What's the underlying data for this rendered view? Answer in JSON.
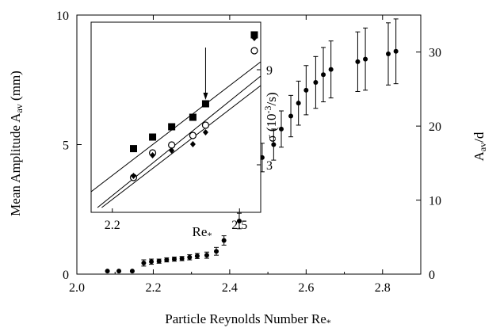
{
  "chart_data": [
    {
      "type": "scatter",
      "xlabel": "Particle Reynolds Number Re",
      "xlabel_sub": "*",
      "ylabel_left": "Mean Amplitude A",
      "ylabel_left_sub": "av",
      "ylabel_left_unit": " (mm)",
      "ylabel_right": "A",
      "ylabel_right_sub": "av",
      "ylabel_right_tail": "/d",
      "xlim": [
        2.0,
        2.9
      ],
      "ylim": [
        0,
        10
      ],
      "y2lim": [
        0,
        35
      ],
      "xticks": [
        "2.0",
        "2.2",
        "2.4",
        "2.6",
        "2.8"
      ],
      "yticks": [
        "0",
        "5",
        "10"
      ],
      "y2ticks": [
        "0",
        "10",
        "20",
        "30"
      ],
      "grid": false,
      "series": [
        {
          "marker": "filled-circle",
          "x": [
            2.08,
            2.11,
            2.145,
            2.175,
            2.195,
            2.215,
            2.235,
            2.255,
            2.275,
            2.295,
            2.315,
            2.34,
            2.365,
            2.385,
            2.425,
            2.46,
            2.485,
            2.515,
            2.535,
            2.56,
            2.58,
            2.6,
            2.625,
            2.645,
            2.665,
            2.735,
            2.755,
            2.815,
            2.835
          ],
          "y": [
            0.12,
            0.12,
            0.12,
            0.43,
            0.48,
            0.5,
            0.55,
            0.58,
            0.6,
            0.65,
            0.7,
            0.73,
            0.88,
            1.3,
            2.05,
            2.9,
            4.5,
            5.0,
            5.6,
            6.1,
            6.6,
            7.1,
            7.4,
            7.7,
            7.9,
            8.2,
            8.3,
            8.5,
            8.6
          ],
          "err": [
            0,
            0,
            0,
            0.12,
            0.1,
            0.08,
            0.08,
            0.08,
            0.08,
            0.1,
            0.1,
            0.12,
            0.15,
            0.18,
            0.3,
            0.45,
            0.55,
            0.6,
            0.7,
            0.8,
            0.85,
            0.95,
            1.0,
            1.05,
            1.1,
            1.15,
            1.2,
            1.2,
            1.25
          ]
        }
      ]
    },
    {
      "type": "scatter",
      "role": "inset",
      "xlabel": "Re",
      "xlabel_sub": "*",
      "ylabel": "σ (10",
      "ylabel_sup": "-3",
      "ylabel_tail": "/s)",
      "xlim": [
        2.15,
        2.55
      ],
      "ylim": [
        0,
        12
      ],
      "xticks": [
        "2.2",
        "2.5"
      ],
      "yticks": [
        "3",
        "9"
      ],
      "arrow_at_x": 2.42,
      "series": [
        {
          "marker": "filled-square",
          "x": [
            2.25,
            2.295,
            2.34,
            2.39,
            2.42,
            2.535
          ],
          "y": [
            4.02,
            4.75,
            5.4,
            6.0,
            6.85,
            11.2
          ]
        },
        {
          "marker": "open-circle",
          "x": [
            2.25,
            2.295,
            2.34,
            2.39,
            2.42,
            2.535
          ],
          "y": [
            2.2,
            3.75,
            4.25,
            4.85,
            5.5,
            10.2
          ]
        },
        {
          "marker": "filled-diamond",
          "x": [
            2.25,
            2.295,
            2.34,
            2.39,
            2.42,
            2.535
          ],
          "y": [
            2.3,
            3.6,
            3.9,
            4.3,
            5.05,
            11.0
          ]
        }
      ],
      "fit_lines": [
        {
          "from": [
            2.15,
            1.3
          ],
          "to": [
            2.55,
            9.5
          ]
        },
        {
          "from": [
            2.165,
            0.3
          ],
          "to": [
            2.55,
            8.6
          ]
        },
        {
          "from": [
            2.175,
            0.3
          ],
          "to": [
            2.55,
            8.0
          ]
        }
      ]
    }
  ]
}
